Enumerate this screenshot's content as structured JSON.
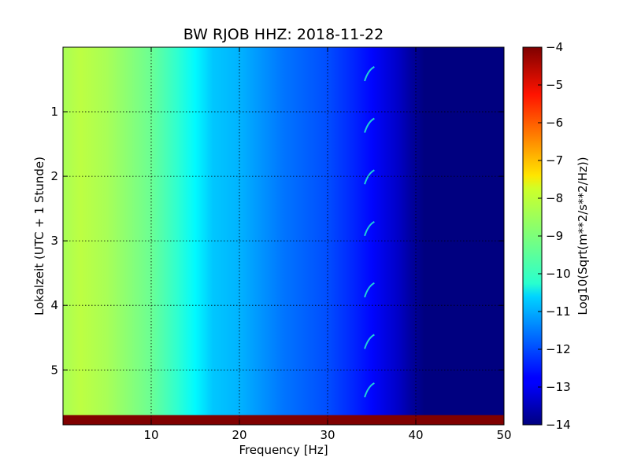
{
  "chart_data": {
    "type": "heatmap",
    "title": "BW RJOB HHZ: 2018-11-22",
    "xlabel": "Frequency [Hz]",
    "ylabel": "Lokalzeit (UTC + 1 Stunde)",
    "colorbar_label": "Log10(Sqrt(m**2/s**2/Hz))",
    "xlim": [
      0,
      50
    ],
    "ylim": [
      5.85,
      0.0
    ],
    "y_inverted": true,
    "xticks": [
      10,
      20,
      30,
      40,
      50
    ],
    "xtick_labels": [
      "10",
      "20",
      "30",
      "40",
      "50"
    ],
    "yticks": [
      1,
      2,
      3,
      4,
      5
    ],
    "ytick_labels": [
      "1",
      "2",
      "3",
      "4",
      "5"
    ],
    "clim": [
      -14,
      -4
    ],
    "cticks": [
      -4,
      -5,
      -6,
      -7,
      -8,
      -9,
      -10,
      -11,
      -12,
      -13,
      -14
    ],
    "ctick_labels": [
      "−4",
      "−5",
      "−6",
      "−7",
      "−8",
      "−9",
      "−10",
      "−11",
      "−12",
      "−13",
      "−14"
    ],
    "colormap": "jet",
    "grid": "dotted",
    "frequency_profile": {
      "freq_hz": [
        0,
        2,
        5,
        10,
        13,
        15,
        17,
        20,
        25,
        30,
        33,
        35,
        38,
        39.5,
        41,
        50
      ],
      "log10_amplitude": [
        -8.6,
        -8.4,
        -8.6,
        -9.2,
        -9.8,
        -10.3,
        -10.8,
        -11.0,
        -11.6,
        -12.0,
        -12.4,
        -12.7,
        -13.3,
        -13.7,
        -14.0,
        -14.0
      ]
    },
    "no_data_band": {
      "time_from": 5.7,
      "time_to": 5.85,
      "value": -4
    },
    "hour_features_time": [
      0.45,
      1.25,
      2.05,
      2.85,
      3.8,
      4.6,
      5.35
    ]
  }
}
